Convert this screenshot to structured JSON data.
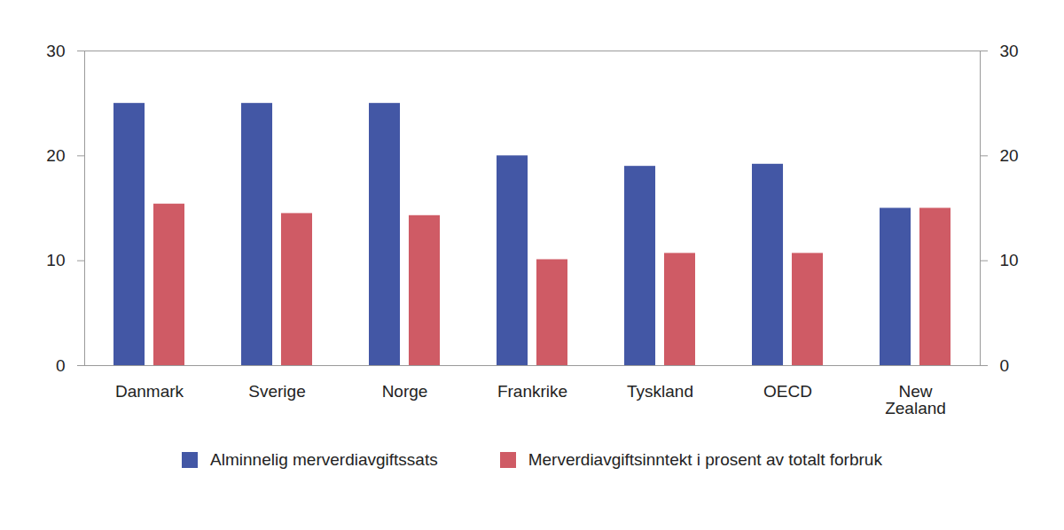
{
  "chart_data": {
    "type": "bar",
    "categories": [
      "Danmark",
      "Sverige",
      "Norge",
      "Frankrike",
      "Tyskland",
      "OECD",
      "New Zealand"
    ],
    "series": [
      {
        "name": "Alminnelig merverdiavgiftssats",
        "color": "#4357a5",
        "values": [
          25,
          25,
          25,
          20,
          19,
          19.2,
          15
        ]
      },
      {
        "name": "Merverdiavgiftsinntekt i prosent av totalt forbruk",
        "color": "#cf5b65",
        "values": [
          15.4,
          14.5,
          14.3,
          10.1,
          10.7,
          10.7,
          15
        ]
      }
    ],
    "ylim": [
      0,
      30
    ],
    "yticks": [
      0,
      10,
      20,
      30
    ],
    "grid": false,
    "legend": "bottom"
  }
}
